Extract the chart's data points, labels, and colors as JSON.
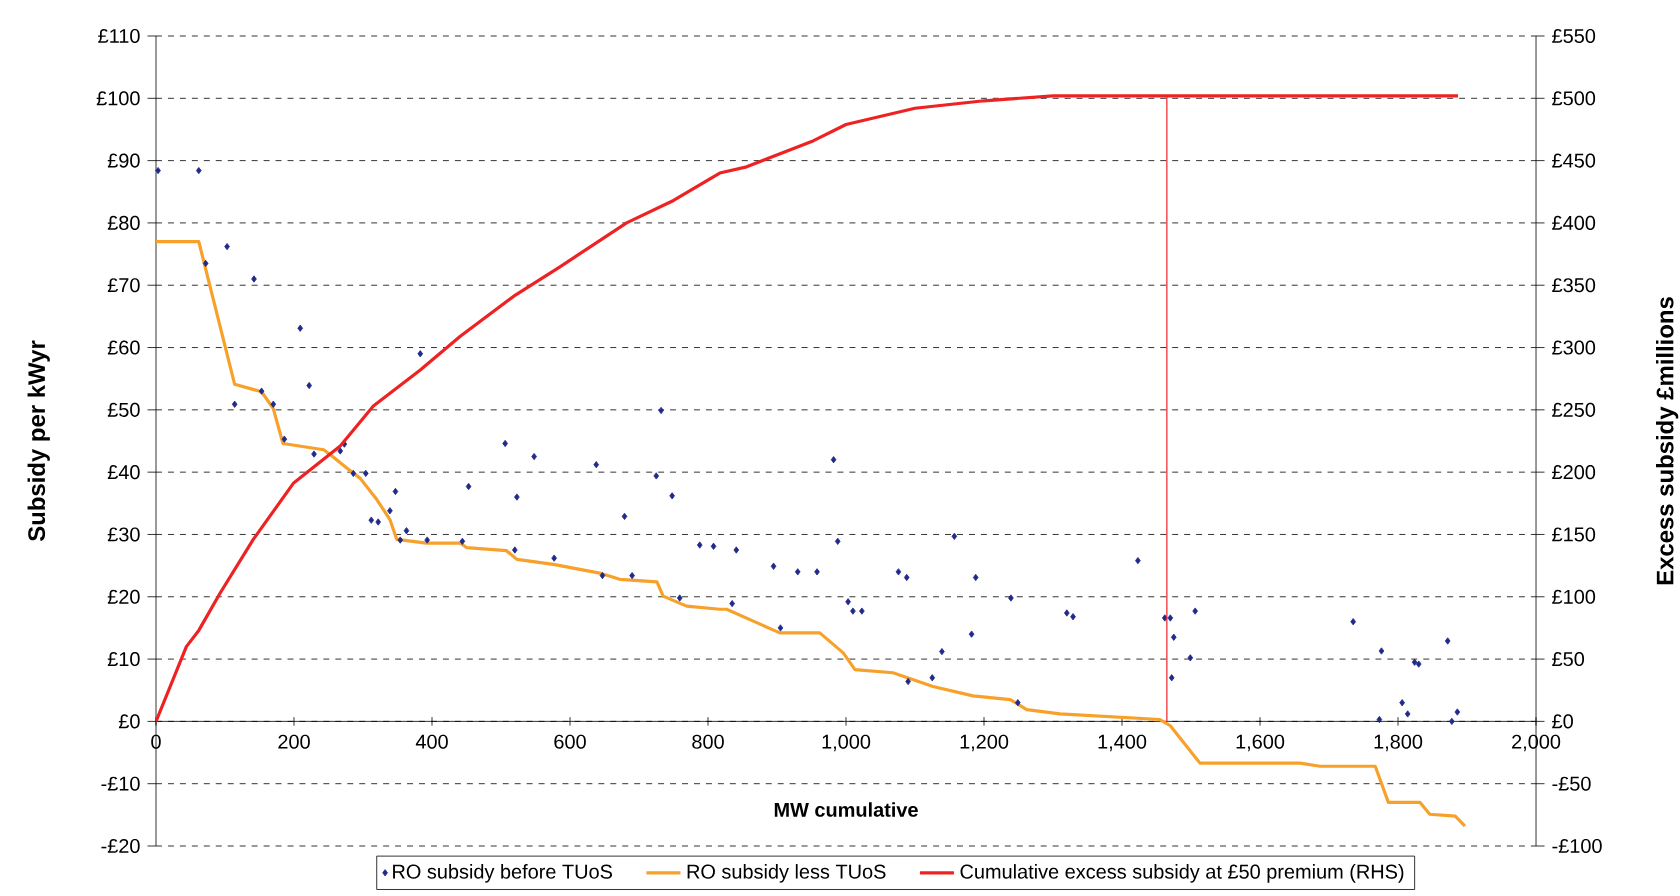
{
  "chart_data": {
    "type": "scatter",
    "xlabel": "MW cumulative",
    "ylabel": "Subsidy per kWyr",
    "y2label": "Excess subsidy £millions",
    "xlim": [
      0,
      2000
    ],
    "ylim": [
      -20,
      110
    ],
    "y2lim": [
      -100,
      550
    ],
    "xticks": [
      0,
      200,
      400,
      600,
      800,
      {
        "value": 1000,
        "label": "1,000"
      },
      {
        "value": 1200,
        "label": "1,200"
      },
      {
        "value": 1400,
        "label": "1,400"
      },
      {
        "value": 1600,
        "label": "1,600"
      },
      {
        "value": 1800,
        "label": "1,800"
      },
      {
        "value": 2000,
        "label": "2,000"
      }
    ],
    "yticks": [
      {
        "value": -20,
        "label": "-£20"
      },
      {
        "value": -10,
        "label": "-£10"
      },
      {
        "value": 0,
        "label": "£0"
      },
      {
        "value": 10,
        "label": "£10"
      },
      {
        "value": 20,
        "label": "£20"
      },
      {
        "value": 30,
        "label": "£30"
      },
      {
        "value": 40,
        "label": "£40"
      },
      {
        "value": 50,
        "label": "£50"
      },
      {
        "value": 60,
        "label": "£60"
      },
      {
        "value": 70,
        "label": "£70"
      },
      {
        "value": 80,
        "label": "£80"
      },
      {
        "value": 90,
        "label": "£90"
      },
      {
        "value": 100,
        "label": "£100"
      },
      {
        "value": 110,
        "label": "£110"
      }
    ],
    "y2ticks": [
      {
        "value": -100,
        "label": "-£100"
      },
      {
        "value": -50,
        "label": "-£50"
      },
      {
        "value": 0,
        "label": "£0"
      },
      {
        "value": 50,
        "label": "£50"
      },
      {
        "value": 100,
        "label": "£100"
      },
      {
        "value": 150,
        "label": "£150"
      },
      {
        "value": 200,
        "label": "£200"
      },
      {
        "value": 250,
        "label": "£250"
      },
      {
        "value": 300,
        "label": "£300"
      },
      {
        "value": 350,
        "label": "£350"
      },
      {
        "value": 400,
        "label": "£400"
      },
      {
        "value": 450,
        "label": "£450"
      },
      {
        "value": 500,
        "label": "£500"
      },
      {
        "value": 550,
        "label": "£550"
      }
    ],
    "grid": "y",
    "legend": "bottom",
    "series": [
      {
        "name": "RO subsidy before TUoS",
        "marker": "diamond",
        "color": "#1f2a8a",
        "x": [
          3,
          62,
          72,
          103,
          114,
          142,
          153,
          170,
          186,
          209,
          222,
          229,
          267,
          273,
          286,
          304,
          312,
          322,
          339,
          347,
          354,
          363,
          383,
          393,
          444,
          453,
          506,
          520,
          523,
          548,
          577,
          638,
          647,
          679,
          690,
          725,
          732,
          748,
          759,
          788,
          808,
          835,
          841,
          895,
          905,
          930,
          958,
          982,
          988,
          1003,
          1010,
          1023,
          1076,
          1088,
          1090,
          1125,
          1139,
          1157,
          1182,
          1188,
          1239,
          1249,
          1320,
          1329,
          1423,
          1462,
          1470,
          1472,
          1475,
          1499,
          1506,
          1735,
          1773,
          1776,
          1806,
          1814,
          1824,
          1830,
          1872,
          1878,
          1886
        ],
        "values": [
          88.4,
          88.4,
          73.5,
          76.2,
          50.9,
          71,
          53,
          50.9,
          45.3,
          63.1,
          53.9,
          42.9,
          43.4,
          44.5,
          39.8,
          39.8,
          32.3,
          32,
          33.8,
          36.9,
          29.1,
          30.6,
          59,
          29.1,
          28.9,
          37.7,
          44.6,
          27.5,
          36,
          42.5,
          26.2,
          41.2,
          23.4,
          32.9,
          23.4,
          39.4,
          49.9,
          36.2,
          19.8,
          28.3,
          28.1,
          18.9,
          27.5,
          24.9,
          15,
          24,
          24,
          42,
          28.9,
          19.2,
          17.7,
          17.7,
          24,
          23.1,
          6.4,
          7,
          11.2,
          29.7,
          14,
          23.1,
          19.8,
          3,
          17.4,
          16.8,
          25.8,
          16.6,
          16.6,
          7,
          13.5,
          10.2,
          17.7,
          16,
          0.3,
          11.3,
          3,
          1.2,
          9.5,
          9.2,
          12.9,
          0,
          1.5
        ]
      },
      {
        "name": "RO subsidy less TUoS",
        "type": "line",
        "color": "#f7a12a",
        "x": [
          0,
          62,
          114,
          153,
          170,
          184,
          243,
          255,
          276,
          296,
          320,
          339,
          349,
          392,
          441,
          450,
          508,
          523,
          576,
          643,
          672,
          726,
          735,
          769,
          817,
          827,
          904,
          962,
          996,
          1013,
          1068,
          1126,
          1184,
          1238,
          1262,
          1310,
          1455,
          1470,
          1513,
          1658,
          1687,
          1767,
          1786,
          1832,
          1846,
          1883,
          1897
        ],
        "values": [
          77,
          77,
          54.1,
          52.9,
          50.2,
          44.6,
          43.6,
          42.6,
          40.7,
          39,
          35.6,
          32.4,
          29.2,
          28.6,
          28.6,
          27.9,
          27.4,
          26,
          25.2,
          23.8,
          22.8,
          22.4,
          20.1,
          18.5,
          18,
          18,
          14.2,
          14.2,
          11,
          8.3,
          7.8,
          5.6,
          4.1,
          3.5,
          1.9,
          1.2,
          0.3,
          -0.7,
          -6.7,
          -6.7,
          -7.2,
          -7.2,
          -13,
          -13,
          -14.9,
          -15.2,
          -16.8
        ]
      },
      {
        "name": "Cumulative excess subsidy at £50 premium (RHS)",
        "type": "line",
        "axis": "y2",
        "color": "#ee2222",
        "x": [
          0,
          44,
          62,
          93,
          141,
          199,
          267,
          315,
          383,
          441,
          518,
          586,
          682,
          750,
          817,
          856,
          953,
          1000,
          1100,
          1200,
          1300,
          1887
        ],
        "values": [
          0,
          60,
          73,
          103,
          146,
          191,
          221,
          253,
          282,
          309,
          341,
          365,
          400,
          418,
          440,
          445,
          466,
          479,
          492,
          498,
          502,
          502
        ]
      },
      {
        "type": "line",
        "axis": "y2",
        "color": "#ee2222",
        "x": [
          1465,
          1465
        ],
        "values": [
          0,
          502
        ]
      }
    ]
  }
}
